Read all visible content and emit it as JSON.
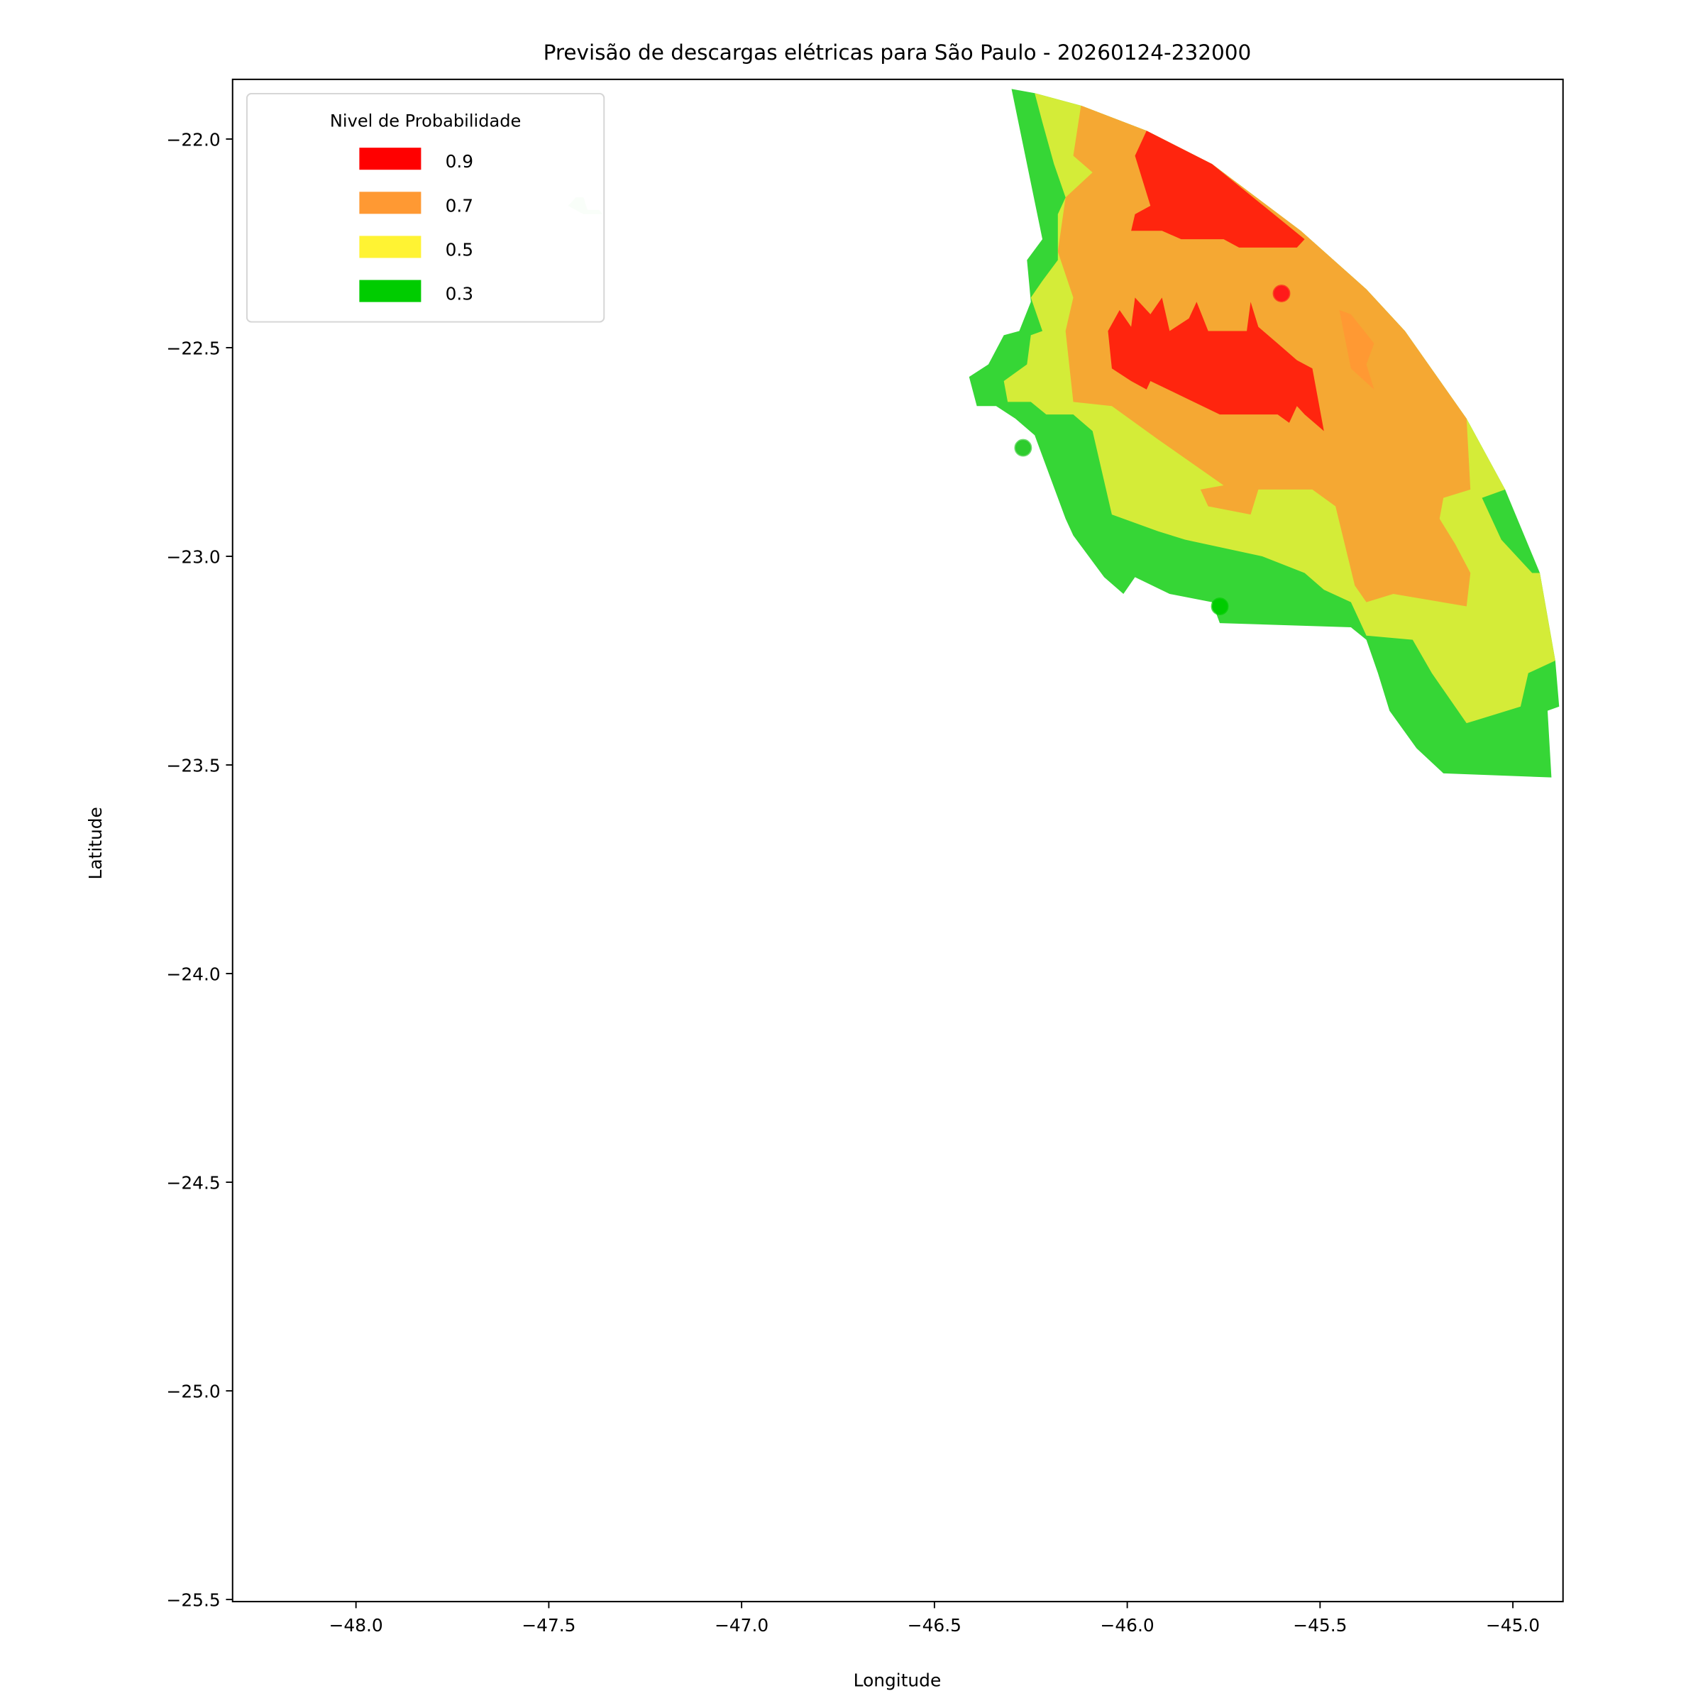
{
  "chart_data": {
    "type": "area",
    "title": "Previsão de descargas elétricas para São Paulo - 20260124-232000",
    "xlabel": "Longitude",
    "ylabel": "Latitude",
    "xlim": [
      -48.32,
      -44.87
    ],
    "ylim": [
      -25.505,
      -21.857
    ],
    "xticks": [
      -48.0,
      -47.5,
      -47.0,
      -46.5,
      -46.0,
      -45.5,
      -45.0
    ],
    "xtick_labels": [
      "−48.0",
      "−47.5",
      "−47.0",
      "−46.5",
      "−46.0",
      "−45.5",
      "−45.0"
    ],
    "yticks": [
      -22.0,
      -22.5,
      -23.0,
      -23.5,
      -24.0,
      -24.5,
      -25.0,
      -25.5
    ],
    "ytick_labels": [
      "−22.0",
      "−22.5",
      "−23.0",
      "−23.5",
      "−24.0",
      "−24.5",
      "−25.0",
      "−25.5"
    ],
    "grid": false,
    "legend": {
      "title": "Nivel de Probabilidade",
      "placement": "top-left",
      "entries": [
        {
          "label": "0.9",
          "color": "#ff0000"
        },
        {
          "label": "0.7",
          "color": "#ff9933"
        },
        {
          "label": "0.5",
          "color": "#fff333"
        },
        {
          "label": "0.3",
          "color": "#00cc00"
        }
      ]
    },
    "regions": [
      {
        "level": 0.1,
        "color": "#d3f5d3",
        "points": [
          [
            -47.45,
            -22.16
          ],
          [
            -47.43,
            -22.14
          ],
          [
            -47.41,
            -22.14
          ],
          [
            -47.4,
            -22.17
          ],
          [
            -47.37,
            -22.17
          ],
          [
            -47.36,
            -22.18
          ],
          [
            -47.41,
            -22.18
          ]
        ]
      },
      {
        "level": 0.3,
        "color": "#36d636",
        "points": [
          [
            -46.3,
            -21.88
          ],
          [
            -46.24,
            -21.89
          ],
          [
            -46.12,
            -21.92
          ],
          [
            -45.95,
            -21.98
          ],
          [
            -45.78,
            -22.06
          ],
          [
            -45.55,
            -22.22
          ],
          [
            -45.38,
            -22.36
          ],
          [
            -45.28,
            -22.46
          ],
          [
            -45.12,
            -22.67
          ],
          [
            -45.02,
            -22.84
          ],
          [
            -44.93,
            -23.04
          ],
          [
            -44.89,
            -23.25
          ],
          [
            -44.88,
            -23.36
          ],
          [
            -44.91,
            -23.37
          ],
          [
            -44.9,
            -23.53
          ],
          [
            -45.18,
            -23.52
          ],
          [
            -45.25,
            -23.46
          ],
          [
            -45.32,
            -23.37
          ],
          [
            -45.35,
            -23.28
          ],
          [
            -45.38,
            -23.2
          ],
          [
            -45.42,
            -23.17
          ],
          [
            -45.76,
            -23.16
          ],
          [
            -45.78,
            -23.11
          ],
          [
            -45.89,
            -23.09
          ],
          [
            -45.98,
            -23.05
          ],
          [
            -46.01,
            -23.09
          ],
          [
            -46.06,
            -23.05
          ],
          [
            -46.14,
            -22.95
          ],
          [
            -46.16,
            -22.91
          ],
          [
            -46.24,
            -22.71
          ],
          [
            -46.29,
            -22.67
          ],
          [
            -46.34,
            -22.64
          ],
          [
            -46.39,
            -22.64
          ],
          [
            -46.41,
            -22.57
          ],
          [
            -46.36,
            -22.54
          ],
          [
            -46.32,
            -22.47
          ],
          [
            -46.28,
            -22.46
          ],
          [
            -46.25,
            -22.39
          ],
          [
            -46.26,
            -22.29
          ],
          [
            -46.22,
            -22.24
          ]
        ]
      },
      {
        "level": 0.5,
        "color": "#d4ec38",
        "points": [
          [
            -46.24,
            -21.89
          ],
          [
            -46.12,
            -21.92
          ],
          [
            -45.95,
            -21.98
          ],
          [
            -45.78,
            -22.06
          ],
          [
            -45.55,
            -22.22
          ],
          [
            -45.38,
            -22.36
          ],
          [
            -45.28,
            -22.46
          ],
          [
            -45.12,
            -22.67
          ],
          [
            -45.02,
            -22.84
          ],
          [
            -45.08,
            -22.86
          ],
          [
            -45.03,
            -22.96
          ],
          [
            -44.95,
            -23.04
          ],
          [
            -44.93,
            -23.04
          ],
          [
            -44.89,
            -23.25
          ],
          [
            -44.96,
            -23.28
          ],
          [
            -44.98,
            -23.36
          ],
          [
            -45.05,
            -23.38
          ],
          [
            -45.12,
            -23.4
          ],
          [
            -45.21,
            -23.28
          ],
          [
            -45.26,
            -23.2
          ],
          [
            -45.38,
            -23.19
          ],
          [
            -45.42,
            -23.11
          ],
          [
            -45.49,
            -23.08
          ],
          [
            -45.54,
            -23.04
          ],
          [
            -45.65,
            -23.0
          ],
          [
            -45.85,
            -22.96
          ],
          [
            -45.92,
            -22.94
          ],
          [
            -46.04,
            -22.9
          ],
          [
            -46.09,
            -22.7
          ],
          [
            -46.14,
            -22.66
          ],
          [
            -46.21,
            -22.66
          ],
          [
            -46.25,
            -22.63
          ],
          [
            -46.31,
            -22.63
          ],
          [
            -46.32,
            -22.58
          ],
          [
            -46.26,
            -22.54
          ],
          [
            -46.25,
            -22.47
          ],
          [
            -46.22,
            -22.46
          ],
          [
            -46.25,
            -22.38
          ],
          [
            -46.22,
            -22.34
          ],
          [
            -46.18,
            -22.29
          ],
          [
            -46.18,
            -22.18
          ],
          [
            -46.16,
            -22.14
          ],
          [
            -46.19,
            -22.06
          ],
          [
            -46.22,
            -21.96
          ]
        ]
      },
      {
        "level": 0.7,
        "color": "#f5a833",
        "points": [
          [
            -46.12,
            -21.92
          ],
          [
            -45.95,
            -21.98
          ],
          [
            -45.78,
            -22.06
          ],
          [
            -45.55,
            -22.22
          ],
          [
            -45.38,
            -22.36
          ],
          [
            -45.28,
            -22.46
          ],
          [
            -45.12,
            -22.67
          ],
          [
            -45.11,
            -22.84
          ],
          [
            -45.18,
            -22.86
          ],
          [
            -45.19,
            -22.91
          ],
          [
            -45.15,
            -22.97
          ],
          [
            -45.11,
            -23.04
          ],
          [
            -45.12,
            -23.12
          ],
          [
            -45.31,
            -23.09
          ],
          [
            -45.38,
            -23.11
          ],
          [
            -45.41,
            -23.07
          ],
          [
            -45.46,
            -22.88
          ],
          [
            -45.52,
            -22.84
          ],
          [
            -45.66,
            -22.84
          ],
          [
            -45.68,
            -22.9
          ],
          [
            -45.79,
            -22.88
          ],
          [
            -45.81,
            -22.84
          ],
          [
            -45.75,
            -22.83
          ],
          [
            -45.92,
            -22.72
          ],
          [
            -46.04,
            -22.64
          ],
          [
            -46.14,
            -22.63
          ],
          [
            -46.16,
            -22.46
          ],
          [
            -46.14,
            -22.38
          ],
          [
            -46.18,
            -22.27
          ],
          [
            -46.16,
            -22.14
          ],
          [
            -46.09,
            -22.08
          ],
          [
            -46.14,
            -22.04
          ]
        ]
      },
      {
        "level": 0.7,
        "color": "#ff9933",
        "points": [
          [
            -45.45,
            -22.41
          ],
          [
            -45.42,
            -22.42
          ],
          [
            -45.36,
            -22.49
          ],
          [
            -45.38,
            -22.54
          ],
          [
            -45.36,
            -22.6
          ],
          [
            -45.42,
            -22.55
          ]
        ]
      },
      {
        "level": 0.9,
        "color": "#ff250e",
        "points": [
          [
            -45.95,
            -21.98
          ],
          [
            -45.78,
            -22.06
          ],
          [
            -45.54,
            -22.24
          ],
          [
            -45.56,
            -22.26
          ],
          [
            -45.71,
            -22.26
          ],
          [
            -45.75,
            -22.24
          ],
          [
            -45.86,
            -22.24
          ],
          [
            -45.91,
            -22.22
          ],
          [
            -45.99,
            -22.22
          ],
          [
            -45.98,
            -22.18
          ],
          [
            -45.94,
            -22.16
          ],
          [
            -45.96,
            -22.1
          ],
          [
            -45.98,
            -22.04
          ]
        ]
      },
      {
        "level": 0.9,
        "color": "#ff250e",
        "points": [
          [
            -46.02,
            -22.41
          ],
          [
            -45.99,
            -22.45
          ],
          [
            -45.98,
            -22.38
          ],
          [
            -45.94,
            -22.42
          ],
          [
            -45.91,
            -22.38
          ],
          [
            -45.89,
            -22.46
          ],
          [
            -45.84,
            -22.43
          ],
          [
            -45.82,
            -22.39
          ],
          [
            -45.79,
            -22.46
          ],
          [
            -45.69,
            -22.46
          ],
          [
            -45.68,
            -22.39
          ],
          [
            -45.66,
            -22.45
          ],
          [
            -45.61,
            -22.49
          ],
          [
            -45.56,
            -22.53
          ],
          [
            -45.52,
            -22.55
          ],
          [
            -45.49,
            -22.7
          ],
          [
            -45.54,
            -22.66
          ],
          [
            -45.56,
            -22.64
          ],
          [
            -45.58,
            -22.68
          ],
          [
            -45.61,
            -22.66
          ],
          [
            -45.76,
            -22.66
          ],
          [
            -45.85,
            -22.62
          ],
          [
            -45.94,
            -22.58
          ],
          [
            -45.95,
            -22.6
          ],
          [
            -45.99,
            -22.58
          ],
          [
            -46.04,
            -22.55
          ],
          [
            -46.05,
            -22.46
          ]
        ]
      }
    ],
    "points": [
      {
        "lon": -45.6,
        "lat": -22.37,
        "level": 0.9,
        "color": "#ff1a1a"
      },
      {
        "lon": -46.27,
        "lat": -22.74,
        "level": 0.3,
        "color": "#2ecc2e"
      },
      {
        "lon": -45.76,
        "lat": -23.12,
        "level": 0.3,
        "color": "#00cc00"
      }
    ]
  }
}
